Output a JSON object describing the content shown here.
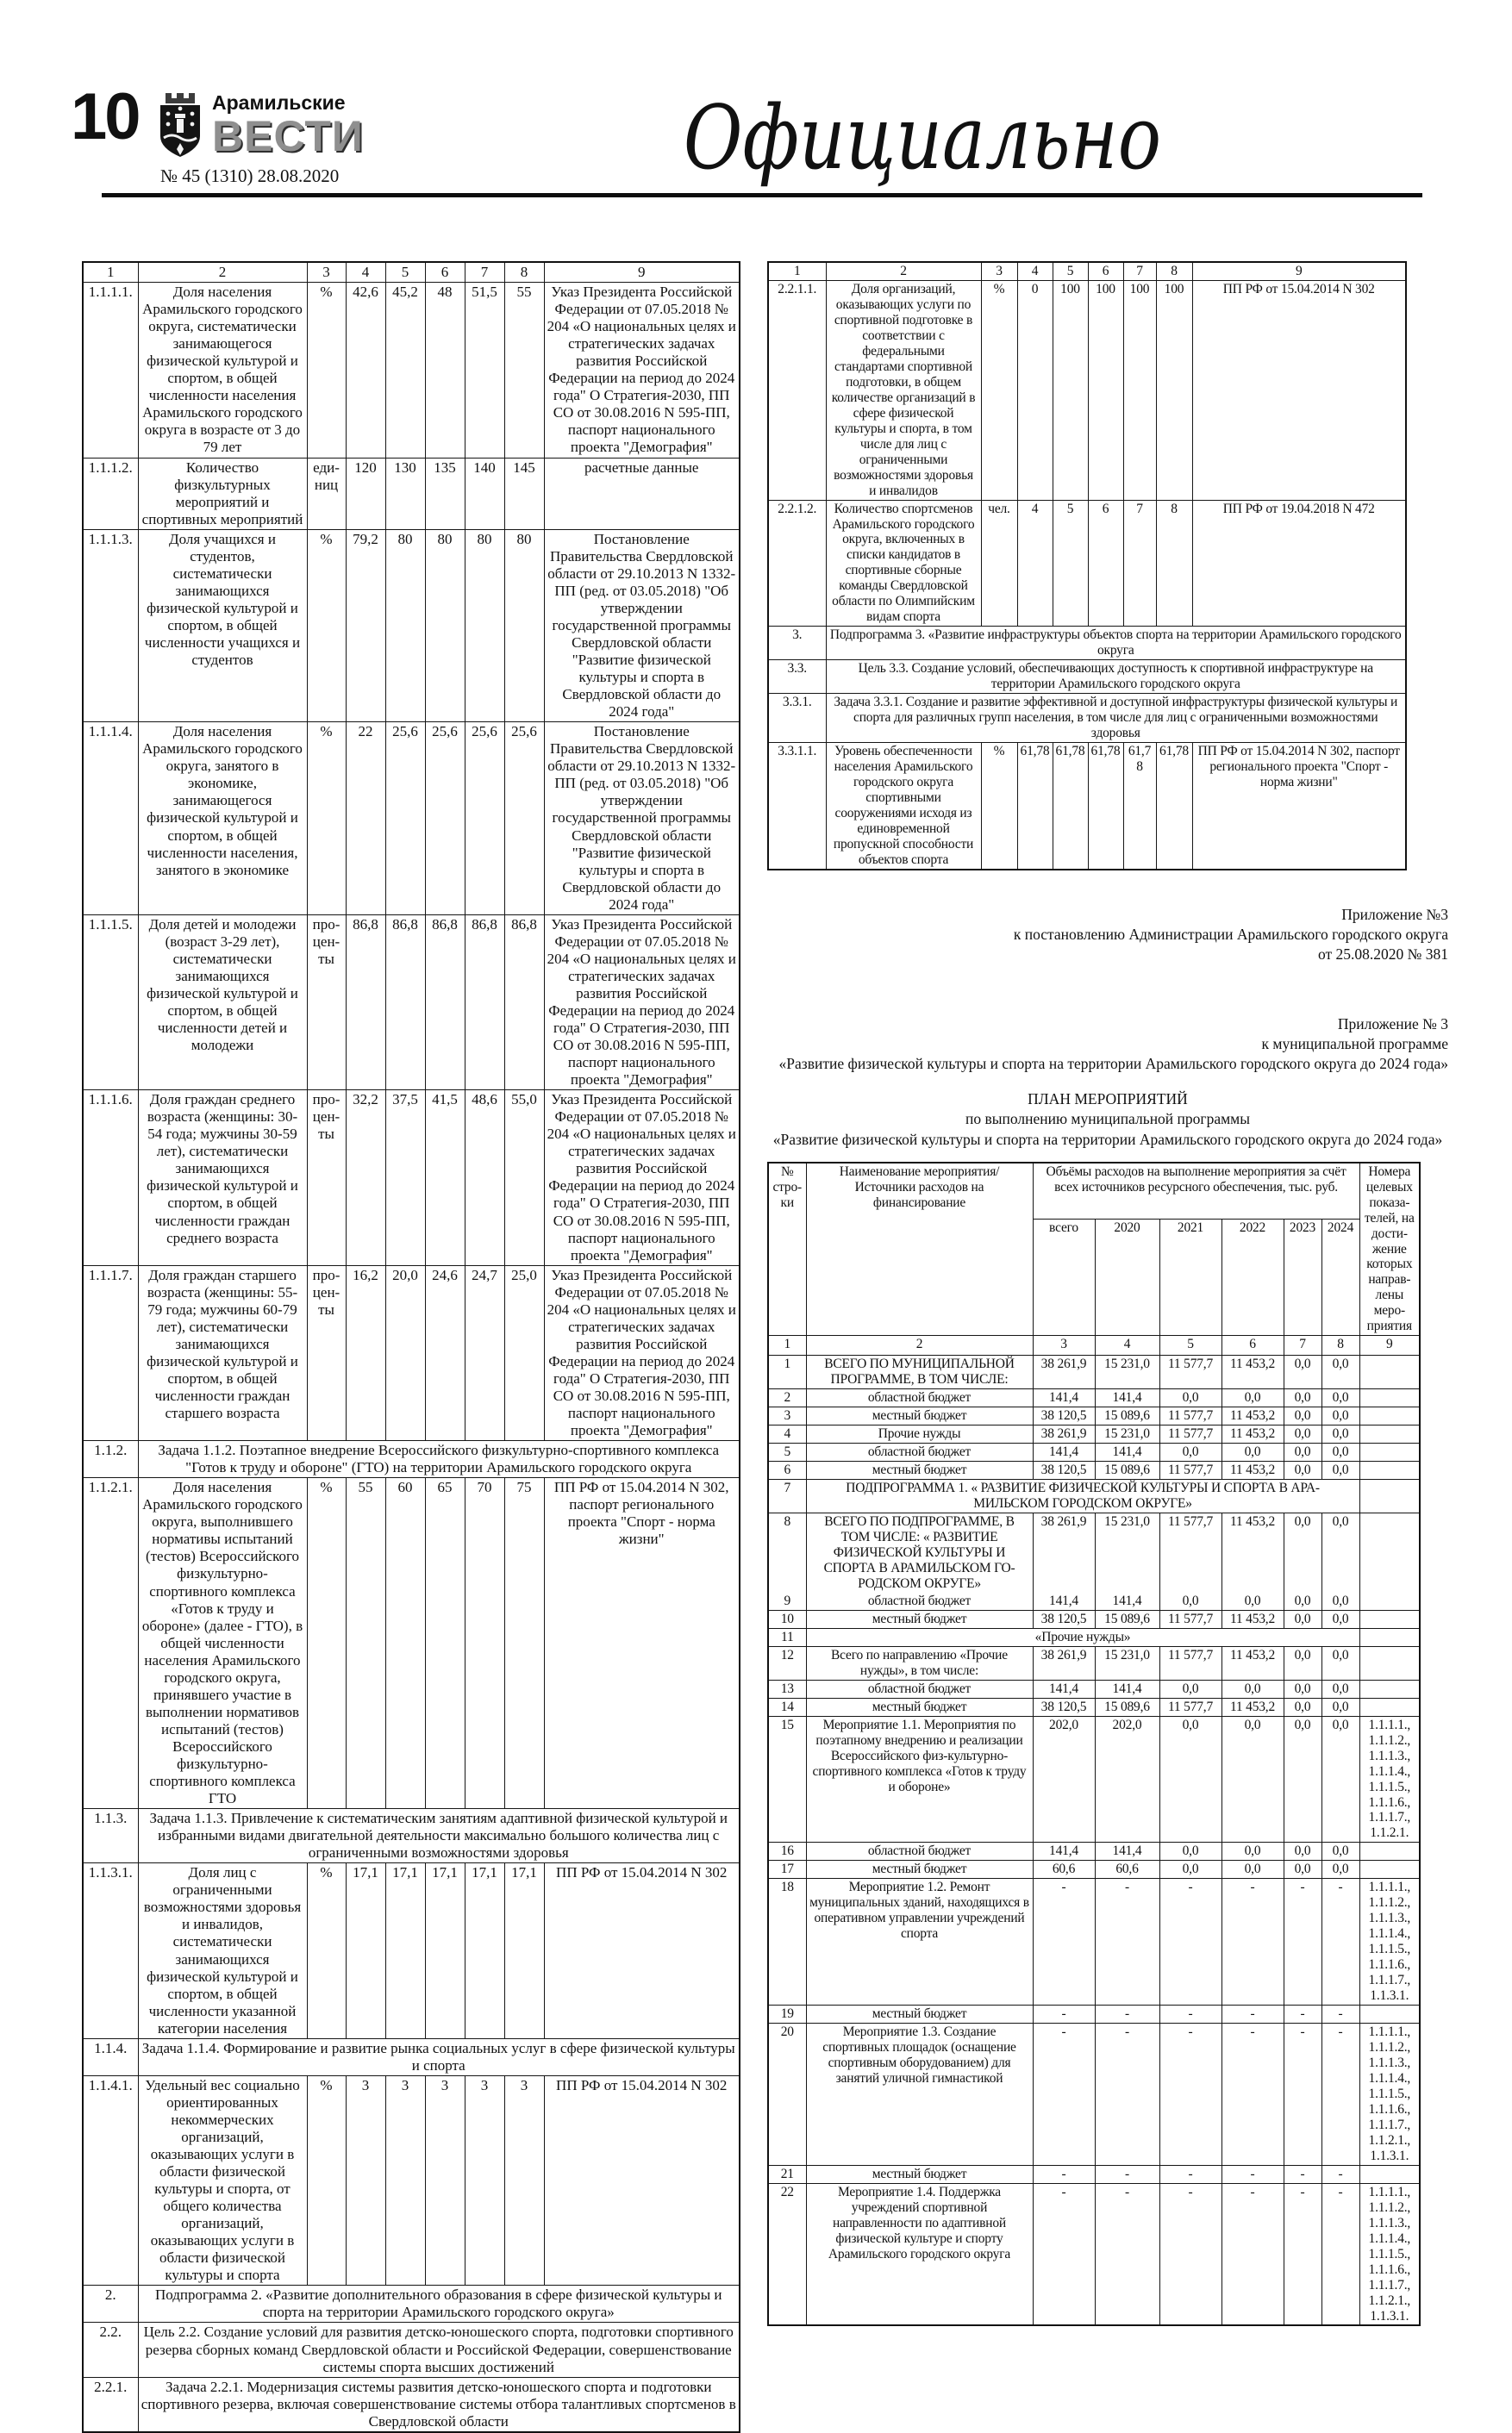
{
  "page": {
    "number": "10",
    "masthead_top": "Арамильские",
    "masthead_main": "ВЕСТИ",
    "issue": "№ 45 (1310) 28.08.2020",
    "section_title": "Официально"
  },
  "appendix1": {
    "lines": [
      "Приложение №3",
      "к постановлению Администрации Арамильского городского округа",
      "от 25.08.2020 № 381"
    ]
  },
  "appendix2": {
    "lines": [
      "Приложение № 3",
      "к муниципальной программе",
      "«Развитие физической культуры и спорта на территории Арамильского городского округа до 2024 года»"
    ]
  },
  "plan_title": {
    "lines": [
      "ПЛАН МЕРОПРИЯТИЙ",
      "по выполнению муниципальной программы",
      "«Развитие физической культуры и спорта на территории Арамильского городского округа до 2024 года»"
    ]
  },
  "left_table": {
    "columns": [
      64,
      196,
      45,
      46,
      46,
      46,
      46,
      46,
      227
    ],
    "rows": [
      {
        "cells": [
          "1",
          "2",
          "3",
          "4",
          "5",
          "6",
          "7",
          "8",
          "9"
        ]
      },
      {
        "cells": [
          "1.1.1.1.",
          "Доля населения Арамильского городского округа, систематически занимающегося физической культурой и спортом, в общей численности населения Арамильского городского округа в возрасте от 3 до 79 лет",
          "%",
          "42,6",
          "45,2",
          "48",
          "51,5",
          "55",
          "Указ Президента Российской Федерации от 07.05.2018 № 204 «О национальных целях и стратегических задачах развития Российской Федерации на период до 2024 года\" О Стратегия-2030, ПП СО от 30.08.2016 N 595-ПП, паспорт национального проекта \"Демография\""
        ]
      },
      {
        "cells": [
          "1.1.1.2.",
          "Количество физкультурных мероприятий и спортивных мероприятий",
          "еди-ниц",
          "120",
          "130",
          "135",
          "140",
          "145",
          "расчетные данные"
        ]
      },
      {
        "cells": [
          "1.1.1.3.",
          "Доля учащихся и студентов, систематически занимающихся физической культурой и спортом, в общей численности учащихся и студентов",
          "%",
          "79,2",
          "80",
          "80",
          "80",
          "80",
          "Постановление Правительства Свердловской области от 29.10.2013 N 1332-ПП (ред. от 03.05.2018) \"Об утверждении государственной программы Свердловской области \"Развитие физической культуры и спорта в Свердловской области до 2024 года\""
        ]
      },
      {
        "cells": [
          "1.1.1.4.",
          "Доля населения Арамильского городского округа, занятого в экономике, занимающегося физической культурой и спортом, в общей численности населения, занятого в экономике",
          "%",
          "22",
          "25,6",
          "25,6",
          "25,6",
          "25,6",
          "Постановление Правительства Свердловской области от 29.10.2013 N 1332-ПП (ред. от 03.05.2018) \"Об утверждении государственной программы Свердловской области \"Развитие физической культуры и спорта в Свердловской области до 2024 года\""
        ]
      },
      {
        "cells": [
          "1.1.1.5.",
          "Доля детей и молодежи (возраст 3-29 лет), систематически занимающихся физической культурой и спортом, в общей численности детей и молодежи",
          "про-цен-ты",
          "86,8",
          "86,8",
          "86,8",
          "86,8",
          "86,8",
          "Указ Президента Российской Федерации от 07.05.2018 № 204 «О национальных целях и стратегических задачах развития Российской Федерации на период до 2024 года\" О Стратегия-2030, ПП СО от 30.08.2016 N 595-ПП, паспорт национального проекта \"Демография\""
        ]
      },
      {
        "cells": [
          "1.1.1.6.",
          "Доля граждан среднего возраста (женщины: 30-54 года; мужчины 30-59 лет), систематически занимающихся физической культурой и спортом, в общей численности граждан среднего возраста",
          "про-цен-ты",
          "32,2",
          "37,5",
          "41,5",
          "48,6",
          "55,0",
          "Указ Президента Российской Федерации от 07.05.2018 № 204 «О национальных целях и стратегических задачах развития Российской Федерации на период до 2024 года\" О Стратегия-2030, ПП СО от 30.08.2016 N 595-ПП, паспорт национального проекта \"Демография\""
        ]
      },
      {
        "cells": [
          "1.1.1.7.",
          "Доля граждан старшего возраста (женщины: 55-79 года; мужчины 60-79 лет), систематически занимающихся физической культурой и спортом, в общей численности граждан старшего возраста",
          "про-цен-ты",
          "16,2",
          "20,0",
          "24,6",
          "24,7",
          "25,0",
          "Указ Президента Российской Федерации от 07.05.2018 № 204 «О национальных целях и стратегических задачах развития Российской Федерации на период до 2024 года\" О Стратегия-2030, ПП СО от 30.08.2016 N 595-ПП, паспорт национального проекта \"Демография\""
        ]
      },
      {
        "cells": [
          "1.1.2.",
          {
            "t": "Задача 1.1.2. Поэтапное внедрение Всероссийского физкультурно-спортивного комплекса \"Готов к труду и обороне\" (ГТО) на территории Арамильского городского округа",
            "cs": 8
          }
        ]
      },
      {
        "cells": [
          "1.1.2.1.",
          "Доля населения Арамильского городского округа, выполнившего нормативы испытаний (тестов) Всероссийского физкультурно-спортивного комплекса «Готов к труду и обороне» (далее - ГТО), в общей численности населения Арамильского городского округа, принявшего участие в выполнении нормативов испытаний (тестов) Всероссийского физкультурно-спортивного комплекса ГТО",
          "%",
          "55",
          "60",
          "65",
          "70",
          "75",
          "ПП РФ от 15.04.2014 N 302, паспорт регионального проекта \"Спорт - норма жизни\""
        ]
      },
      {
        "cells": [
          "1.1.3.",
          {
            "t": "Задача 1.1.3. Привлечение к систематическим занятиям адаптивной физической культурой и избранными видами двигательной деятельности максимально большого количества лиц с ограниченными возможностями здоровья",
            "cs": 8
          }
        ]
      },
      {
        "cells": [
          "1.1.3.1.",
          "Доля лиц с ограниченными возможностями здоровья и инвалидов, систематически занимающихся физической культурой и спортом, в общей численности указанной категории населения",
          "%",
          "17,1",
          "17,1",
          "17,1",
          "17,1",
          "17,1",
          "ПП РФ от 15.04.2014 N 302"
        ]
      },
      {
        "cells": [
          "1.1.4.",
          {
            "t": "Задача 1.1.4. Формирование и развитие рынка социальных услуг в сфере физической культуры и спорта",
            "cs": 8
          }
        ]
      },
      {
        "cells": [
          "1.1.4.1.",
          "Удельный вес социально ориентированных некоммерческих организаций, оказывающих услуги в области физической культуры и спорта, от общего количества организаций, оказывающих услуги в области физической культуры и спорта",
          "%",
          "3",
          "3",
          "3",
          "3",
          "3",
          "ПП РФ от 15.04.2014 N 302"
        ]
      },
      {
        "cells": [
          "2.",
          {
            "t": "Подпрограмма 2. «Развитие дополнительного образования в сфере физической культуры и спорта на территории Арамильского городского округа»",
            "cs": 8
          }
        ]
      },
      {
        "cells": [
          "2.2.",
          {
            "t": "Цель 2.2. Создание условий для развития детско-юношеского спорта, подготовки спортивного резерва сборных команд Свердловской области и Российской Федерации, совершенствование системы спорта высших достижений",
            "cs": 8
          }
        ]
      },
      {
        "cells": [
          "2.2.1.",
          {
            "t": "Задача 2.2.1. Модернизация системы развития детско-юношеского спорта и подготовки спортивного резерва, включая совершенствование системы отбора талантливых спортсменов в Свердловской области",
            "cs": 8
          }
        ]
      }
    ]
  },
  "right_table": {
    "columns": [
      67,
      180,
      42,
      41,
      41,
      41,
      38,
      42,
      248
    ],
    "rows": [
      {
        "cells": [
          "1",
          "2",
          "3",
          "4",
          "5",
          "6",
          "7",
          "8",
          "9"
        ]
      },
      {
        "cells": [
          "2.2.1.1.",
          "Доля организаций, оказывающих услуги по спортивной подготовке в соответствии с федеральными стандартами спортивной подготовки, в общем количестве организаций в сфере физической культуры и спорта, в том числе для лиц с ограниченными возможностями здоровья и инвалидов",
          "%",
          "0",
          "100",
          "100",
          "100",
          "100",
          "ПП РФ от 15.04.2014 N 302"
        ]
      },
      {
        "cells": [
          "2.2.1.2.",
          "Количество спортсменов Арамильского городского округа, включенных в списки кандидатов в спортивные сборные команды Свердловской области по Олимпийским видам спорта",
          "чел.",
          "4",
          "5",
          "6",
          "7",
          "8",
          "ПП РФ от 19.04.2018 N 472"
        ]
      },
      {
        "cells": [
          "3.",
          {
            "t": "Подпрограмма 3. «Развитие инфраструктуры объектов спорта на территории Арамильского городского округа",
            "cs": 8
          }
        ]
      },
      {
        "cells": [
          "3.3.",
          {
            "t": "Цель 3.3. Создание условий, обеспечивающих доступность к спортивной инфраструктуре на территории Арамильского городского округа",
            "cs": 8
          }
        ]
      },
      {
        "cells": [
          "3.3.1.",
          {
            "t": "Задача 3.3.1. Создание и развитие эффективной и доступной инфраструктуры физической культуры и спорта для различных групп населения, в том числе для лиц с ограниченными возможностями здоровья",
            "cs": 8
          }
        ]
      },
      {
        "cells": [
          "3.3.1.1.",
          "Уровень обеспеченности населения Арамильского городского округа спортивными сооружениями исходя из единовременной пропускной способности объектов спорта",
          "%",
          "61,78",
          "61,78",
          "61,78",
          "61,78",
          "61,78",
          "ПП РФ от 15.04.2014 N 302, паспорт регионального проекта \"Спорт - норма жизни\""
        ]
      }
    ]
  },
  "plan_table": {
    "columns": [
      44,
      263,
      72,
      75,
      72,
      72,
      44,
      44,
      70
    ],
    "rows": [
      {
        "cls": "h1",
        "cells": [
          {
            "t": "№ стро-ки",
            "rs": 2
          },
          {
            "t": "Наименование мероприятия/ Источники расходов на финансирование",
            "rs": 2
          },
          {
            "t": "Объёмы расходов на выполнение мероприятия за счёт всех источников ресурсного обеспечения, тыс. руб.",
            "cs": 6
          },
          {
            "t": "Номера целевых показа-телей, на дости-жение которых направ-лены меро-приятия",
            "rs": 2
          }
        ]
      },
      {
        "cls": "h2",
        "cells": [
          "всего",
          "2020",
          "2021",
          "2022",
          "2023",
          "2024"
        ]
      },
      {
        "cls": "hn",
        "cells": [
          "1",
          "2",
          "3",
          "4",
          "5",
          "6",
          "7",
          "8",
          "9"
        ]
      },
      {
        "cells": [
          "1",
          "ВСЕГО ПО МУНИЦИПАЛЬНОЙ ПРОГРАММЕ, В ТОМ ЧИСЛЕ:",
          "38 261,9",
          "15 231,0",
          "11 577,7",
          "11 453,2",
          "0,0",
          "0,0",
          ""
        ]
      },
      {
        "cells": [
          "2",
          "областной бюджет",
          "141,4",
          "141,4",
          "0,0",
          "0,0",
          "0,0",
          "0,0",
          ""
        ]
      },
      {
        "cells": [
          "3",
          "местный бюджет",
          "38 120,5",
          "15 089,6",
          "11 577,7",
          "11 453,2",
          "0,0",
          "0,0",
          ""
        ]
      },
      {
        "cells": [
          "4",
          "Прочие нужды",
          "38 261,9",
          "15 231,0",
          "11 577,7",
          "11 453,2",
          "0,0",
          "0,0",
          ""
        ]
      },
      {
        "cells": [
          "5",
          "областной бюджет",
          "141,4",
          "141,4",
          "0,0",
          "0,0",
          "0,0",
          "0,0",
          ""
        ]
      },
      {
        "cells": [
          "6",
          "местный бюджет",
          "38 120,5",
          "15 089,6",
          "11 577,7",
          "11 453,2",
          "0,0",
          "0,0",
          ""
        ]
      },
      {
        "cells": [
          "7",
          {
            "t": "ПОДПРОГРАММА  1. « РАЗВИТИЕ ФИЗИЧЕСКОЙ КУЛЬТУРЫ И СПОРТА В АРА-МИЛЬСКОМ ГОРОДСКОМ ОКРУГЕ»",
            "cs": 7
          },
          ""
        ]
      },
      {
        "cls": "nbb",
        "cells": [
          "8",
          "ВСЕГО ПО ПОДПРОГРАММЕ, В ТОМ ЧИСЛЕ: « РАЗВИТИЕ ФИЗИЧЕСКОЙ КУЛЬТУРЫ И СПОРТА В АРАМИЛЬСКОМ ГО-РОДСКОМ ОКРУГЕ»",
          "38 261,9",
          "15 231,0",
          "11 577,7",
          "11 453,2",
          "0,0",
          "0,0",
          ""
        ]
      },
      {
        "cls": "nbt",
        "cells": [
          "9",
          "областной бюджет",
          "141,4",
          "141,4",
          "0,0",
          "0,0",
          "0,0",
          "0,0",
          ""
        ]
      },
      {
        "cells": [
          "10",
          "местный бюджет",
          "38 120,5",
          "15 089,6",
          "11 577,7",
          "11 453,2",
          "0,0",
          "0,0",
          ""
        ]
      },
      {
        "cells": [
          "11",
          {
            "t": "«Прочие нужды»",
            "cs": 7
          },
          ""
        ]
      },
      {
        "cells": [
          "12",
          "Всего по направлению «Прочие нужды», в том числе:",
          "38 261,9",
          "15 231,0",
          "11 577,7",
          "11 453,2",
          "0,0",
          "0,0",
          ""
        ]
      },
      {
        "cells": [
          "13",
          "областной бюджет",
          "141,4",
          "141,4",
          "0,0",
          "0,0",
          "0,0",
          "0,0",
          ""
        ]
      },
      {
        "cells": [
          "14",
          "местный бюджет",
          "38 120,5",
          "15 089,6",
          "11 577,7",
          "11 453,2",
          "0,0",
          "0,0",
          ""
        ]
      },
      {
        "cells": [
          "15",
          "Мероприятие 1.1.  Мероприятия по поэтапному внедрению и реализации Всероссийского физ-культурно-спортивного комплекса «Готов к труду и обороне»",
          "202,0",
          "202,0",
          "0,0",
          "0,0",
          "0,0",
          "0,0",
          "1.1.1.1., 1.1.1.2., 1.1.1.3., 1.1.1.4., 1.1.1.5., 1.1.1.6., 1.1.1.7., 1.1.2.1."
        ]
      },
      {
        "cells": [
          "16",
          "областной бюджет",
          "141,4",
          "141,4",
          "0,0",
          "0,0",
          "0,0",
          "0,0",
          ""
        ]
      },
      {
        "cells": [
          "17",
          "местный бюджет",
          "60,6",
          "60,6",
          "0,0",
          "0,0",
          "0,0",
          "0,0",
          ""
        ]
      },
      {
        "cells": [
          "18",
          "Мероприятие 1.2. Ремонт муниципальных зданий, находящихся в оперативном управлении учреждений спорта",
          "-",
          "-",
          "-",
          "-",
          "-",
          "-",
          "1.1.1.1., 1.1.1.2., 1.1.1.3., 1.1.1.4., 1.1.1.5., 1.1.1.6., 1.1.1.7., 1.1.3.1."
        ]
      },
      {
        "cells": [
          "19",
          "местный бюджет",
          "-",
          "-",
          "-",
          "-",
          "-",
          "-",
          ""
        ]
      },
      {
        "cells": [
          "20",
          "Мероприятие 1.3. Создание спортивных площадок (оснащение спортивным оборудованием) для занятий уличной гимнастикой",
          "-",
          "-",
          "-",
          "-",
          "-",
          "-",
          "1.1.1.1., 1.1.1.2., 1.1.1.3., 1.1.1.4., 1.1.1.5., 1.1.1.6., 1.1.1.7., 1.1.2.1., 1.1.3.1."
        ]
      },
      {
        "cells": [
          "21",
          "местный бюджет",
          "-",
          "-",
          "-",
          "-",
          "-",
          "-",
          ""
        ]
      },
      {
        "cells": [
          "22",
          "Мероприятие 1.4. Поддержка учреждений спортивной направленности по адаптивной физической культуре и спорту Арамильского городского округа",
          "-",
          "-",
          "-",
          "-",
          "-",
          "-",
          "1.1.1.1., 1.1.1.2., 1.1.1.3., 1.1.1.4., 1.1.1.5., 1.1.1.6., 1.1.1.7., 1.1.2.1., 1.1.3.1."
        ]
      }
    ]
  }
}
